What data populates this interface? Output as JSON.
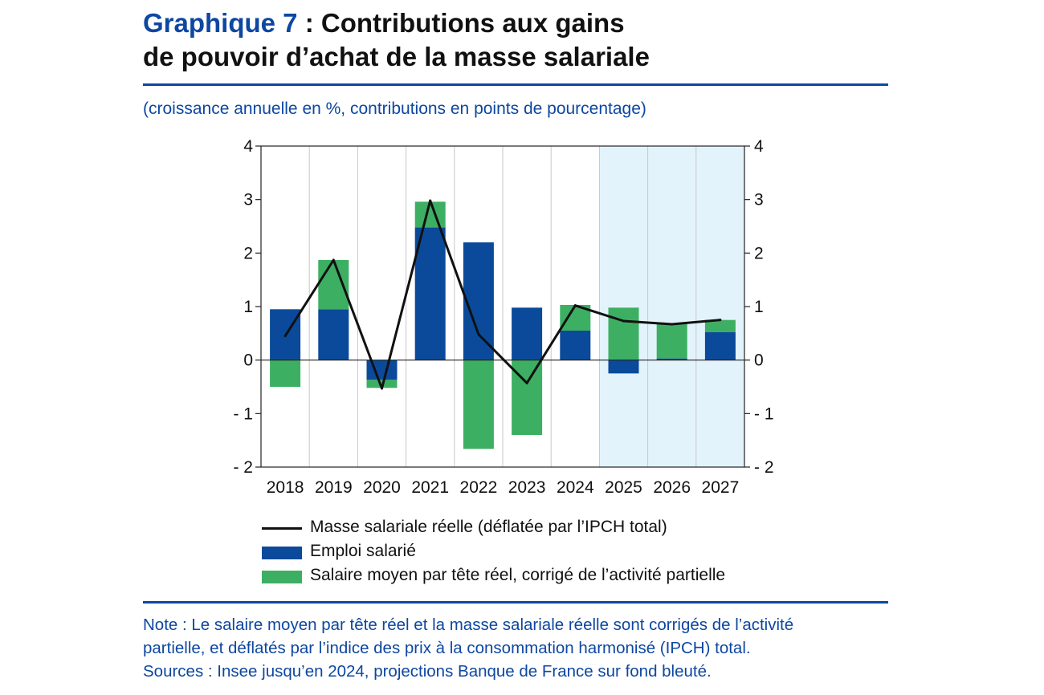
{
  "header": {
    "title_number": "Graphique 7",
    "title_line1": " : Contributions aux gains",
    "title_line2": "de pouvoir d’achat de la masse salariale",
    "subtitle": "(croissance annuelle en %, contributions en points de pourcentage)"
  },
  "colors": {
    "brand_blue": "#0d47a1",
    "emploi": "#0b4a9a",
    "salaire": "#3daf63",
    "line": "#111111",
    "projection_bg": "#e3f3fb"
  },
  "chart_data": {
    "type": "bar",
    "stacked": true,
    "categories": [
      "2018",
      "2019",
      "2020",
      "2021",
      "2022",
      "2023",
      "2024",
      "2025",
      "2026",
      "2027"
    ],
    "ylim": [
      -2,
      4
    ],
    "yticks": [
      -2,
      -1,
      0,
      1,
      2,
      3,
      4
    ],
    "ytick_labels": [
      "- 2",
      "- 1",
      "0",
      "1",
      "2",
      "3",
      "4"
    ],
    "projection_start_index": 7,
    "series": [
      {
        "name": "Emploi salarié",
        "kind": "bar",
        "color": "#0b4a9a",
        "values": [
          0.95,
          0.95,
          -0.37,
          2.48,
          2.2,
          0.98,
          0.55,
          -0.25,
          0.03,
          0.52
        ]
      },
      {
        "name": "Salaire moyen par tête réel, corrigé de l’activité partielle",
        "kind": "bar",
        "color": "#3daf63",
        "values": [
          -0.5,
          0.92,
          -0.15,
          0.48,
          -1.66,
          -1.4,
          0.48,
          0.98,
          0.65,
          0.23
        ]
      },
      {
        "name": "Masse salariale réelle (déflatée par l’IPCH total)",
        "kind": "line",
        "color": "#111111",
        "values": [
          0.45,
          1.87,
          -0.53,
          2.98,
          0.48,
          -0.43,
          1.02,
          0.73,
          0.67,
          0.75
        ]
      }
    ]
  },
  "legend": {
    "line_label": "Masse salariale réelle (déflatée par l’IPCH total)",
    "emploi_label": "Emploi salarié",
    "salaire_label": "Salaire moyen par tête réel, corrigé de l’activité partielle"
  },
  "note": {
    "line1": "Note : Le salaire moyen par tête réel et la masse salariale réelle sont corrigés de l’activité",
    "line2": "partielle, et déflatés par l’indice des prix à la consommation harmonisé (IPCH) total.",
    "line3": "Sources : Insee jusqu’en 2024, projections Banque de France sur fond bleuté."
  }
}
